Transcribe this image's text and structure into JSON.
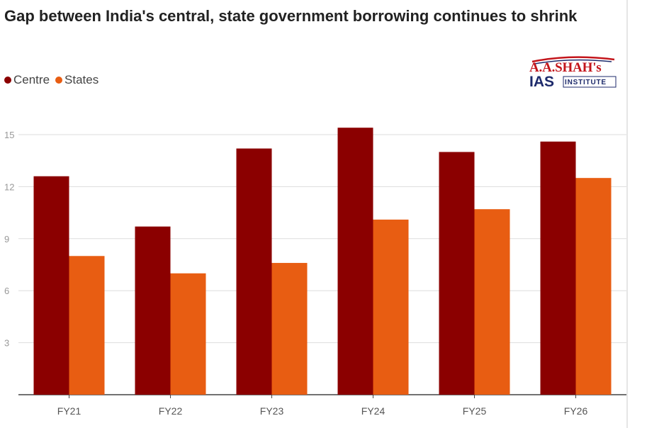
{
  "chart_data": {
    "type": "bar",
    "title": "Gap between India's central, state government borrowing continues to shrink",
    "categories": [
      "FY21",
      "FY22",
      "FY23",
      "FY24",
      "FY25",
      "FY26"
    ],
    "series": [
      {
        "name": "Centre",
        "color": "#8b0000",
        "values": [
          12.6,
          9.7,
          14.2,
          15.4,
          14.0,
          14.6
        ]
      },
      {
        "name": "States",
        "color": "#e85d12",
        "values": [
          8.0,
          7.0,
          7.6,
          10.1,
          10.7,
          12.5
        ]
      }
    ],
    "yticks": [
      3,
      6,
      9,
      12,
      15
    ],
    "ylim": [
      0,
      16
    ],
    "xlabel": "",
    "ylabel": "",
    "grid": true,
    "legend": "top-left"
  },
  "logo": {
    "line1": "A.A.SHAH's",
    "line2": "IAS",
    "line3": "INSTITUTE"
  }
}
